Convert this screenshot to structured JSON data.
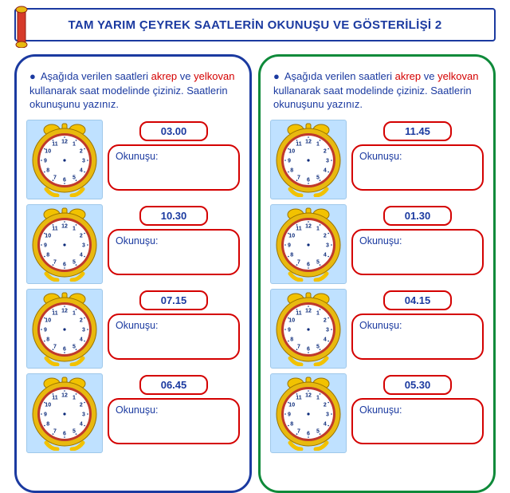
{
  "title": "TAM YARIM ÇEYREK SAATLERİN OKUNUŞU VE GÖSTERİLİŞİ  2",
  "instruction_parts": {
    "lead": "Aşağıda verilen saatleri ",
    "akrep": "akrep",
    "mid": " ve ",
    "yelkovan": "yelkovan",
    "tail": " kullanarak saat modelinde çiziniz. Saatlerin okunuşunu yazınız."
  },
  "read_label": "Okunuşu:",
  "colors": {
    "title_border": "#1b3aa0",
    "title_text": "#1b3aa0",
    "left_panel_border": "#1b3aa0",
    "right_panel_border": "#0f8a3a",
    "pill_border": "#d40000",
    "highlight_text": "#d40000",
    "clock_tile_bg": "#bfe1ff",
    "clock_ring_outer": "#e8b90f",
    "clock_ring_inner": "#c0392b",
    "clock_bell": "#f2c200",
    "clock_face_bg": "#ffffff"
  },
  "clock": {
    "numerals": [
      "12",
      "1",
      "2",
      "3",
      "4",
      "5",
      "6",
      "7",
      "8",
      "9",
      "10",
      "11"
    ],
    "tick_count": 12
  },
  "panels": {
    "left": {
      "items": [
        {
          "time": "03.00"
        },
        {
          "time": "10.30"
        },
        {
          "time": "07.15"
        },
        {
          "time": "06.45"
        }
      ]
    },
    "right": {
      "items": [
        {
          "time": "11.45"
        },
        {
          "time": "01.30"
        },
        {
          "time": "04.15"
        },
        {
          "time": "05.30"
        }
      ]
    }
  }
}
